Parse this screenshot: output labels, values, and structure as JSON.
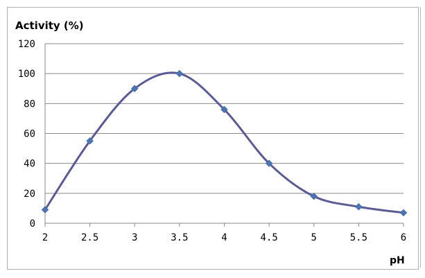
{
  "chart_data": {
    "type": "line",
    "ylabel": "Activity (%)",
    "xlabel": "pH",
    "x": [
      2,
      2.5,
      3,
      3.5,
      4,
      4.5,
      5,
      5.5,
      6
    ],
    "x_tick_labels": [
      "2",
      "2.5",
      "3",
      "3.5",
      "4",
      "4.5",
      "5",
      "5.5",
      "6"
    ],
    "y_tick_labels": [
      "0",
      "20",
      "40",
      "60",
      "80",
      "100",
      "120"
    ],
    "series": [
      {
        "values": [
          9,
          55,
          90,
          100,
          76,
          40,
          18,
          11,
          7
        ]
      }
    ],
    "ylim": [
      0,
      120
    ],
    "xlim": [
      2,
      6
    ],
    "grid": true,
    "legend": "none",
    "colors": {
      "line": "#5a5a96",
      "marker": "#4a75b5"
    },
    "smooth": true
  }
}
